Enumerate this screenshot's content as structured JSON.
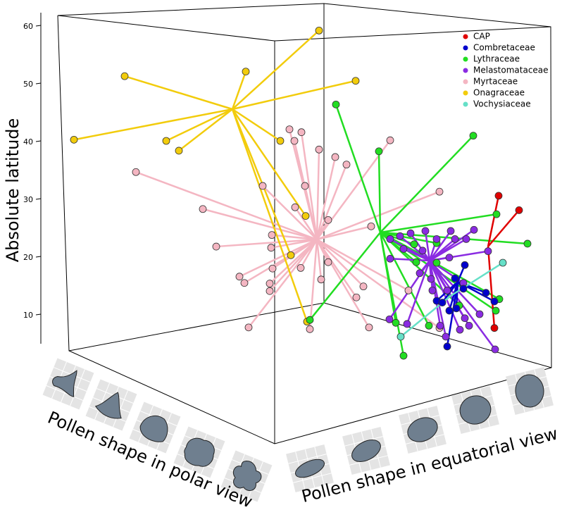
{
  "chart_data": {
    "type": "phylomorphospace",
    "y_label": "Absolute latitude",
    "x_label": "Pollen shape in polar view",
    "z_label": "Pollen shape in equatorial view",
    "ylim": [
      5,
      62
    ],
    "yticks": [
      10,
      20,
      30,
      40,
      50,
      60
    ],
    "legend": "top-right",
    "series": [
      {
        "name": "CAP",
        "color": "#e00000",
        "values": [
          30.5,
          28.0,
          7.6
        ]
      },
      {
        "name": "Combretaceae",
        "color": "#0000cc",
        "values": [
          16.2,
          14.4,
          12.3,
          12.0,
          10.6,
          11.0,
          13.7,
          12.2,
          4.4,
          18.5
        ]
      },
      {
        "name": "Lythraceae",
        "color": "#22dd22",
        "values": [
          46.3,
          38.2,
          40.9,
          27.3,
          22.2,
          22.1,
          22.3,
          18.9,
          10.6,
          12.6,
          19.0,
          8.5,
          8.0,
          2.8,
          9.0,
          11.5
        ]
      },
      {
        "name": "Melastomataceae",
        "color": "#8a2be2",
        "values": [
          23.0,
          19.6,
          23.5,
          24.0,
          24.4,
          23.0,
          23.0,
          23.0,
          24.6,
          24.4,
          21.3,
          21.0,
          20.9,
          17.1,
          14.1,
          14.1,
          15.4,
          8.0,
          6.1,
          3.9,
          9.1,
          8.3,
          7.3,
          8.0,
          10.0,
          9.3,
          19.8,
          16.1
        ]
      },
      {
        "name": "Myrtaceae",
        "color": "#f4b6c2",
        "values": [
          34.6,
          28.2,
          32.2,
          42.0,
          41.5,
          40.0,
          38.5,
          37.2,
          35.9,
          32.2,
          28.5,
          26.3,
          23.7,
          21.7,
          21.5,
          16.5,
          15.4,
          15.3,
          14.0,
          17.9,
          18.0,
          19.0,
          16.0,
          14.8,
          12.9,
          7.7,
          7.4,
          7.7,
          40.1,
          31.2,
          25.2,
          7.6,
          14.1
        ]
      },
      {
        "name": "Onagraceae",
        "color": "#f2cc0c",
        "values": [
          59.1,
          51.2,
          52.0,
          50.4,
          40.2,
          40.0,
          38.3,
          40.0,
          27.0,
          20.2,
          8.7
        ]
      },
      {
        "name": "Vochysiaceae",
        "color": "#66e0c8",
        "values": [
          18.9,
          6.1
        ]
      }
    ]
  }
}
